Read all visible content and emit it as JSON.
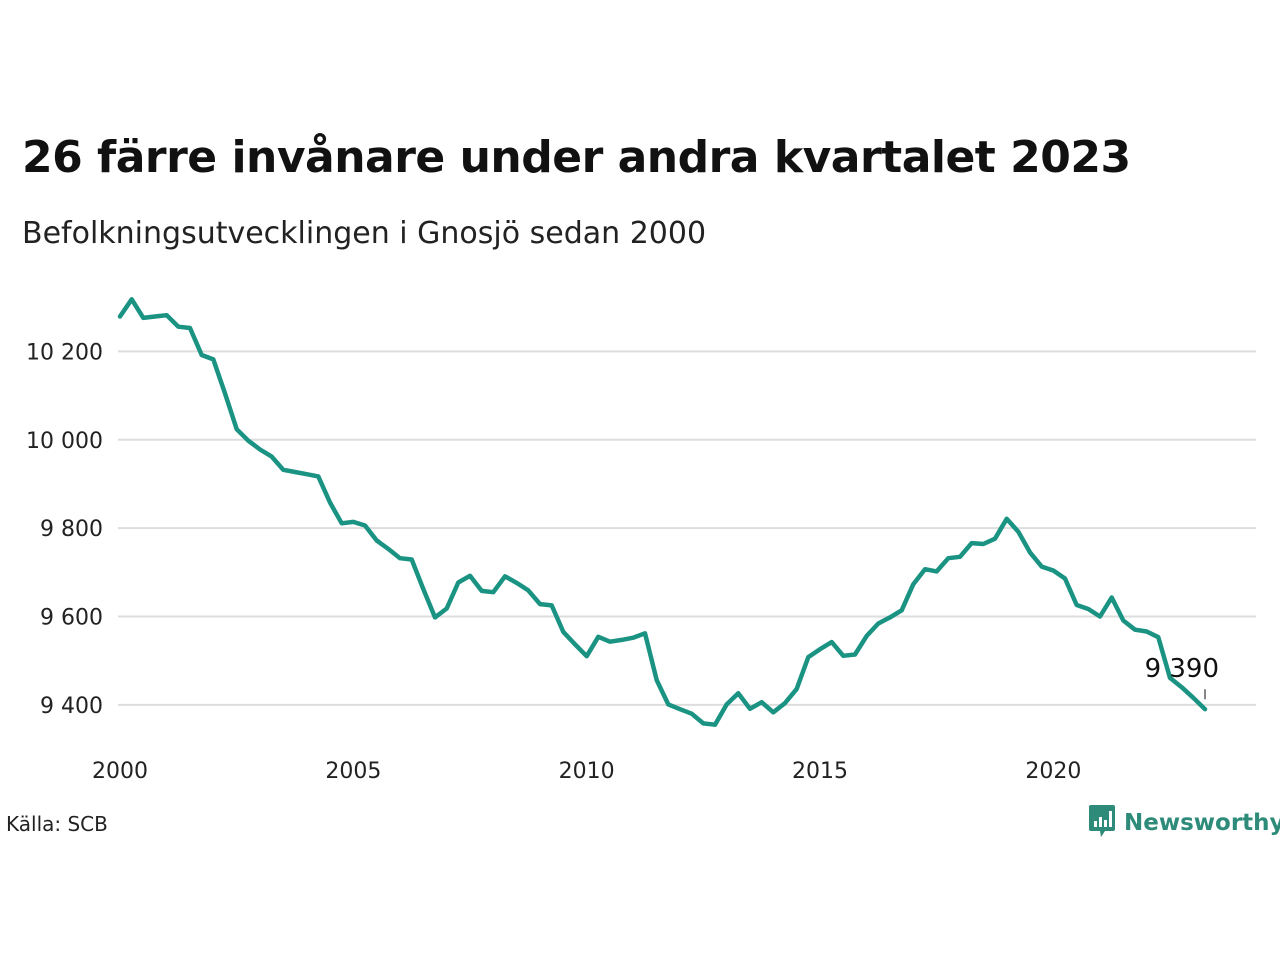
{
  "title": "26 färre invånare under andra kvartalet 2023",
  "subtitle": "Befolkningsutvecklingen i Gnosjö sedan 2000",
  "source": "Källa: SCB",
  "brand": {
    "name": "Newsworthy",
    "icon": "newsworthy-logo-icon",
    "color": "#2e8b7a"
  },
  "colors": {
    "line": "#1a9383",
    "grid": "#dddddd",
    "text": "#222222"
  },
  "chart_data": {
    "type": "line",
    "title": "26 färre invånare under andra kvartalet 2023",
    "xlabel": "",
    "ylabel": "",
    "grid": true,
    "legend": "none",
    "x_start": "2000-Q1",
    "x_frequency": "quarterly",
    "xlim": [
      2000,
      2024
    ],
    "ylim": [
      9300,
      10330
    ],
    "x_ticks": [
      2000,
      2005,
      2010,
      2015,
      2020
    ],
    "x_tick_labels": [
      "2000",
      "2005",
      "2010",
      "2015",
      "2020"
    ],
    "y_ticks": [
      9400,
      9600,
      9800,
      10000,
      10200
    ],
    "y_tick_labels": [
      "9 400",
      "9 600",
      "9 800",
      "10 000",
      "10 200"
    ],
    "series": [
      {
        "values": [
          10279,
          10318,
          10276,
          10279,
          10282,
          10256,
          10253,
          10192,
          10182,
          10105,
          10024,
          9998,
          9978,
          9962,
          9932,
          9927,
          9922,
          9917,
          9858,
          9811,
          9814,
          9806,
          9772,
          9753,
          9732,
          9729,
          9662,
          9598,
          9618,
          9677,
          9692,
          9658,
          9655,
          9691,
          9676,
          9659,
          9628,
          9625,
          9565,
          9537,
          9510,
          9554,
          9543,
          9547,
          9552,
          9562,
          9456,
          9401,
          9390,
          9380,
          9358,
          9355,
          9401,
          9426,
          9391,
          9406,
          9383,
          9404,
          9436,
          9508,
          9526,
          9542,
          9511,
          9514,
          9556,
          9584,
          9598,
          9614,
          9673,
          9707,
          9702,
          9732,
          9735,
          9766,
          9764,
          9776,
          9821,
          9792,
          9745,
          9713,
          9704,
          9686,
          9626,
          9617,
          9600,
          9643,
          9591,
          9570,
          9566,
          9553,
          9461,
          9440,
          9416,
          9390
        ]
      }
    ],
    "annotations": [
      {
        "label": "9 390",
        "x": "2023-Q2",
        "y": 9390
      }
    ]
  }
}
